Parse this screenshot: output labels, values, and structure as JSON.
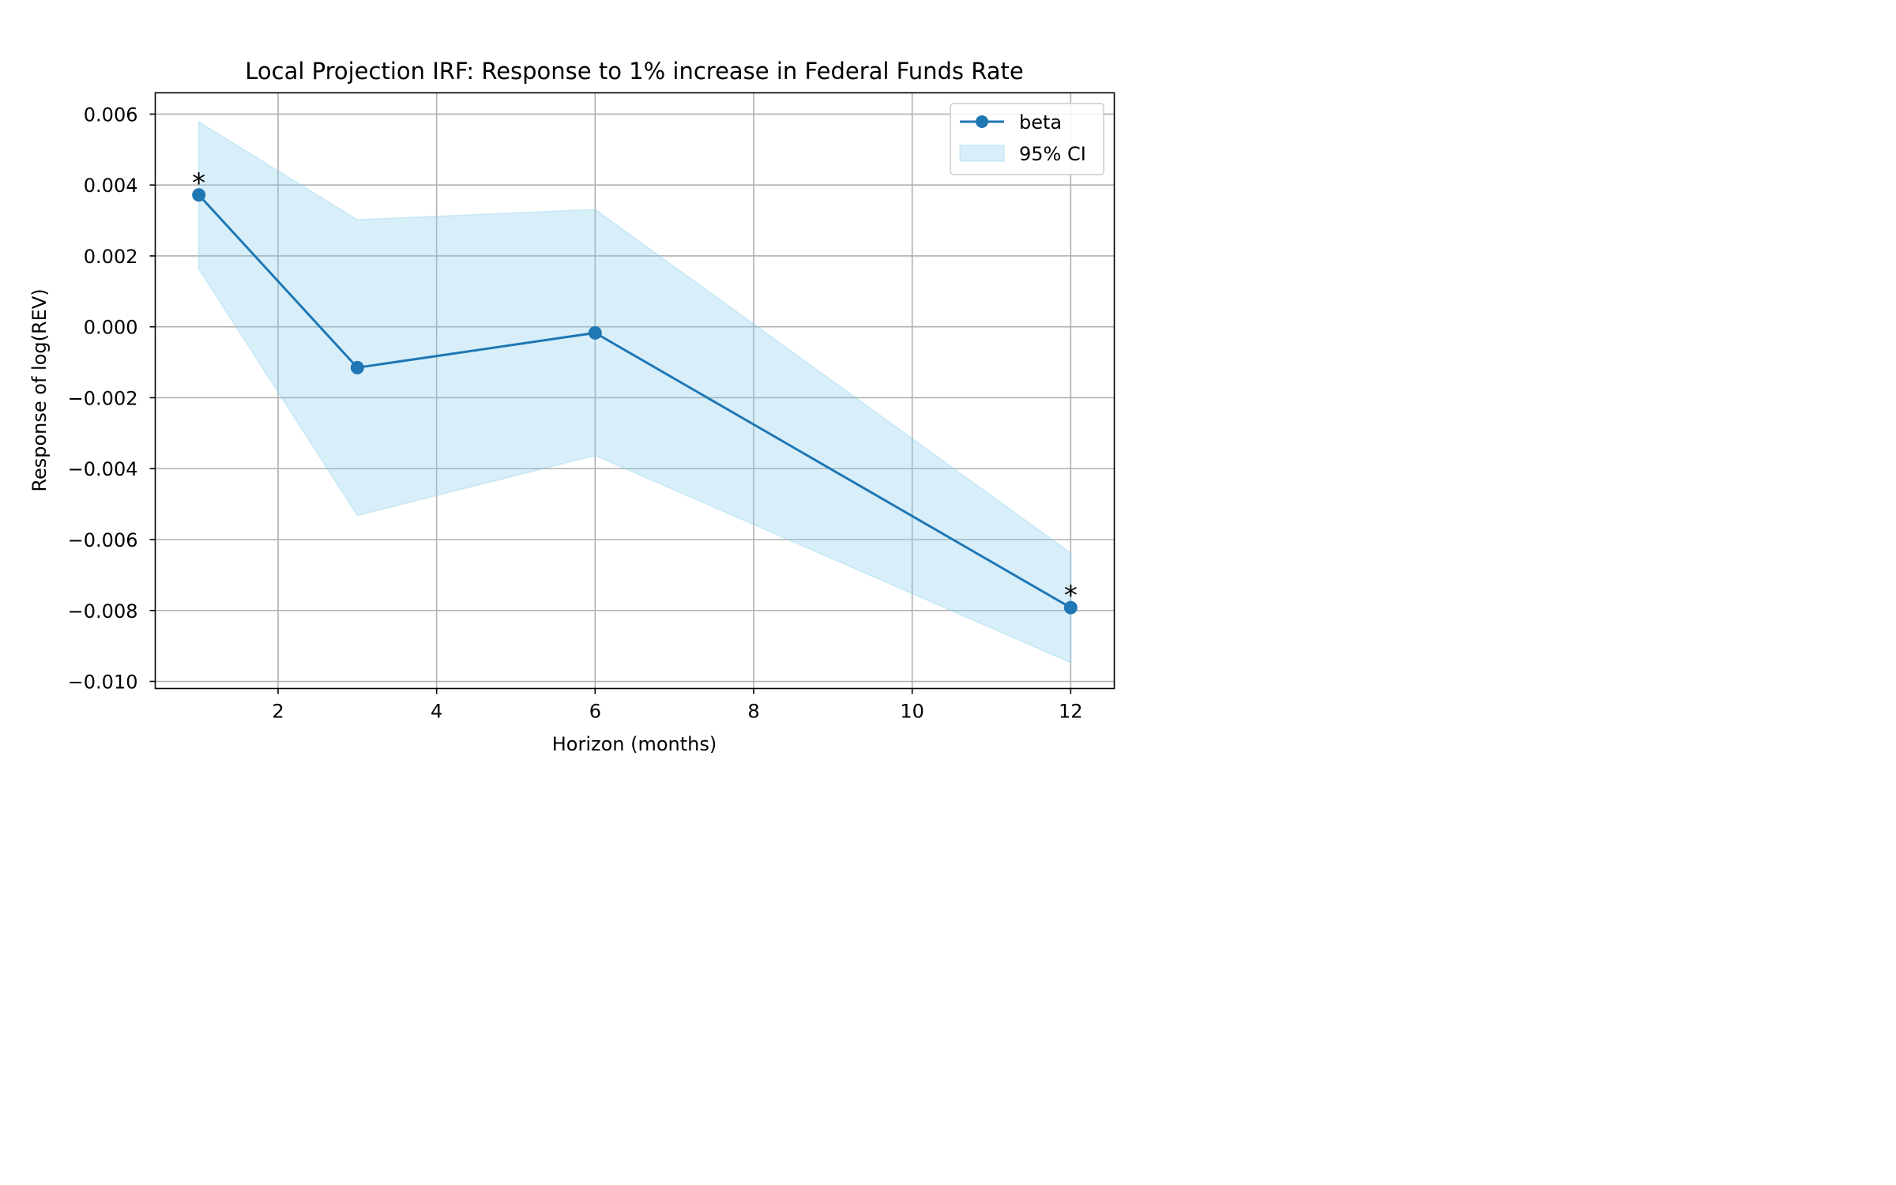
{
  "chart_data": {
    "type": "line",
    "title": "Local Projection IRF: Response to 1% increase in Federal Funds Rate",
    "xlabel": "Horizon (months)",
    "ylabel": "Response of log(REV)",
    "xlim": [
      0.45,
      12.55
    ],
    "ylim": [
      -0.0102,
      0.0066
    ],
    "x_ticks": [
      2,
      4,
      6,
      8,
      10,
      12
    ],
    "x_tick_labels": [
      "2",
      "4",
      "6",
      "8",
      "10",
      "12"
    ],
    "y_ticks": [
      0.006,
      0.004,
      0.002,
      0.0,
      -0.002,
      -0.004,
      -0.006,
      -0.008,
      -0.01
    ],
    "y_tick_labels": [
      "0.006",
      "0.004",
      "0.002",
      "0.000",
      "−0.002",
      "−0.004",
      "−0.006",
      "−0.008",
      "−0.010"
    ],
    "grid": true,
    "legend_position": "top-right",
    "x": [
      1,
      3,
      6,
      12
    ],
    "series": [
      {
        "name": "beta",
        "values": [
          0.00372,
          -0.00115,
          -0.00017,
          -0.00792
        ],
        "color": "#1f77b4",
        "marker": "circle"
      }
    ],
    "band": {
      "name": "95% CI",
      "lower": [
        0.00163,
        -0.00532,
        -0.00363,
        -0.00947
      ],
      "upper": [
        0.00578,
        0.00302,
        0.00331,
        -0.00638
      ],
      "color": "#87ceeb"
    },
    "annotations": [
      {
        "text": "*",
        "x": 1,
        "y": 0.00372
      },
      {
        "text": "*",
        "x": 12,
        "y": -0.00792
      }
    ]
  }
}
